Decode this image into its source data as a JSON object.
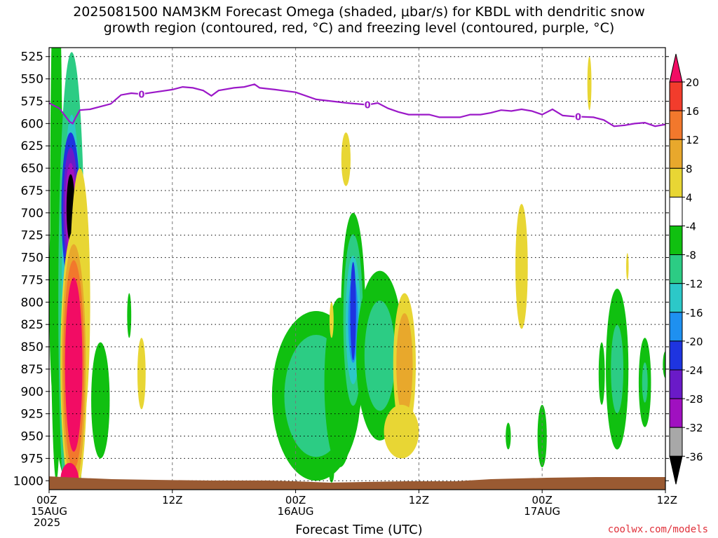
{
  "title": {
    "line1": "2025081500 NAM3KM Forecast Omega (shaded, μbar/s) for KBDL with dendritic snow",
    "line2": "growth region (contoured, red, °C) and freezing level (contoured, purple, °C)"
  },
  "credit": "coolwx.com/models",
  "chart_data": {
    "type": "heatmap",
    "xlabel": "Forecast Time (UTC)",
    "x_range_hours": [
      0,
      60
    ],
    "y_range_hpa": [
      1010,
      515
    ],
    "y_ticks": [
      525,
      550,
      575,
      600,
      625,
      650,
      675,
      700,
      725,
      750,
      775,
      800,
      825,
      850,
      875,
      900,
      925,
      950,
      975,
      1000
    ],
    "x_ticks": [
      {
        "hour": 0,
        "label": "00Z",
        "sub": "15AUG",
        "sub2": "2025"
      },
      {
        "hour": 12,
        "label": "12Z",
        "sub": "",
        "sub2": ""
      },
      {
        "hour": 24,
        "label": "00Z",
        "sub": "16AUG",
        "sub2": ""
      },
      {
        "hour": 36,
        "label": "12Z",
        "sub": "",
        "sub2": ""
      },
      {
        "hour": 48,
        "label": "00Z",
        "sub": "17AUG",
        "sub2": ""
      },
      {
        "hour": 60,
        "label": "12Z",
        "sub": "",
        "sub2": ""
      }
    ],
    "grid": true,
    "colorbar": {
      "labels": [
        "20",
        "16",
        "12",
        "8",
        "4",
        "-4",
        "-8",
        "-12",
        "-16",
        "-20",
        "-24",
        "-28",
        "-32",
        "-36"
      ],
      "colors": [
        "#f20c64",
        "#f23c2c",
        "#f2782c",
        "#e8a82c",
        "#e8d634",
        "#ffffff",
        "#10c010",
        "#2ccc84",
        "#2cc8c8",
        "#1e90f0",
        "#1e34e0",
        "#6a1ac8",
        "#a010c0",
        "#a8a8a8",
        "#000000"
      ]
    },
    "freezing_level": {
      "label": "0",
      "color": "#9b18c8",
      "points": [
        [
          0,
          577
        ],
        [
          1,
          583
        ],
        [
          2,
          598
        ],
        [
          2.3,
          600
        ],
        [
          2.6,
          593
        ],
        [
          3,
          585
        ],
        [
          4,
          584
        ],
        [
          6,
          578
        ],
        [
          7,
          568
        ],
        [
          8,
          566
        ],
        [
          9,
          567
        ],
        [
          12,
          562
        ],
        [
          13,
          559
        ],
        [
          14,
          560
        ],
        [
          15,
          563
        ],
        [
          15.8,
          569
        ],
        [
          16.5,
          563
        ],
        [
          18,
          560
        ],
        [
          19,
          559
        ],
        [
          20,
          556
        ],
        [
          20.5,
          560
        ],
        [
          22,
          562
        ],
        [
          24,
          565
        ],
        [
          26,
          573
        ],
        [
          29,
          577
        ],
        [
          31,
          579
        ],
        [
          32,
          577
        ],
        [
          33,
          583
        ],
        [
          34,
          587
        ],
        [
          35,
          590
        ],
        [
          37,
          590
        ],
        [
          38,
          593
        ],
        [
          40,
          593
        ],
        [
          41,
          590
        ],
        [
          42,
          590
        ],
        [
          43,
          588
        ],
        [
          44,
          585
        ],
        [
          45,
          586
        ],
        [
          46,
          584
        ],
        [
          47,
          586
        ],
        [
          48,
          590
        ],
        [
          49,
          584
        ],
        [
          50,
          591
        ],
        [
          51,
          592
        ],
        [
          53,
          593
        ],
        [
          54,
          596
        ],
        [
          55,
          603
        ],
        [
          56,
          602
        ],
        [
          57,
          600
        ],
        [
          58,
          599
        ],
        [
          59,
          603
        ],
        [
          60,
          601
        ]
      ],
      "label_hours": [
        9,
        31,
        51.5
      ]
    },
    "omega_features": [
      {
        "value": 20,
        "hour": 2.0,
        "hpa": 890,
        "dh": 1.3,
        "dp": 120
      },
      {
        "value": -36,
        "hour": 2.1,
        "hpa": 695,
        "dh": 0.45,
        "dp": 45
      },
      {
        "value": -16,
        "hour": 29.6,
        "hpa": 810,
        "dh": 0.4,
        "dp": 70
      },
      {
        "value": 8,
        "hour": 35.0,
        "hpa": 840,
        "dh": 0.9,
        "dp": 70
      }
    ]
  }
}
